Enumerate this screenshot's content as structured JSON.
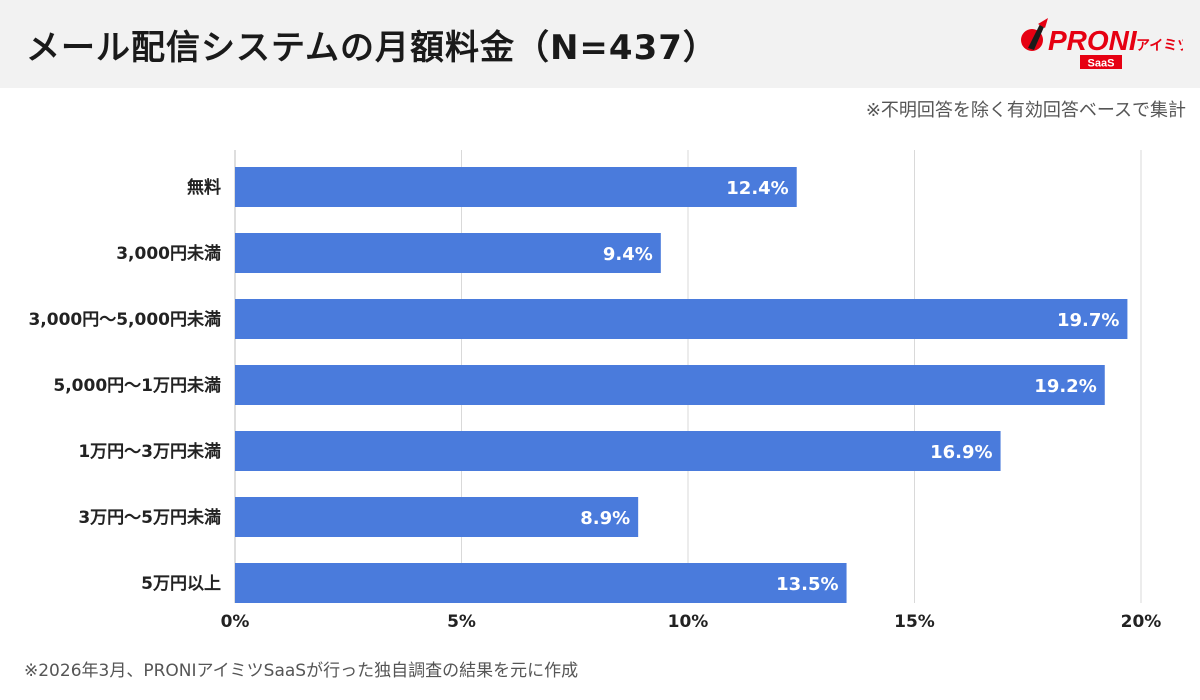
{
  "header": {
    "title": "メール配信システムの月額料金（N=437）",
    "logo": {
      "brand": "PRONI",
      "sub": "アイミツ",
      "badge": "SaaS"
    }
  },
  "note": "※不明回答を除く有効回答ベースで集計",
  "footer": "※2026年3月、PRONIアイミツSaaSが行った独自調査の結果を元に作成",
  "colors": {
    "bar": "#4a7bdc",
    "grid": "#d9d9d9",
    "logo_red": "#e60012"
  },
  "chart_data": {
    "type": "bar",
    "orientation": "horizontal",
    "categories": [
      "無料",
      "3,000円未満",
      "3,000円〜5,000円未満",
      "5,000円〜1万円未満",
      "1万円〜3万円未満",
      "3万円〜5万円未満",
      "5万円以上"
    ],
    "values": [
      12.4,
      9.4,
      19.7,
      19.2,
      16.9,
      8.9,
      13.5
    ],
    "value_labels": [
      "12.4%",
      "9.4%",
      "19.7%",
      "19.2%",
      "16.9%",
      "8.9%",
      "13.5%"
    ],
    "xlim": [
      0,
      20
    ],
    "xticks": [
      0,
      5,
      10,
      15,
      20
    ],
    "xtick_labels": [
      "0%",
      "5%",
      "10%",
      "15%",
      "20%"
    ],
    "grid": true,
    "legend": "none"
  }
}
